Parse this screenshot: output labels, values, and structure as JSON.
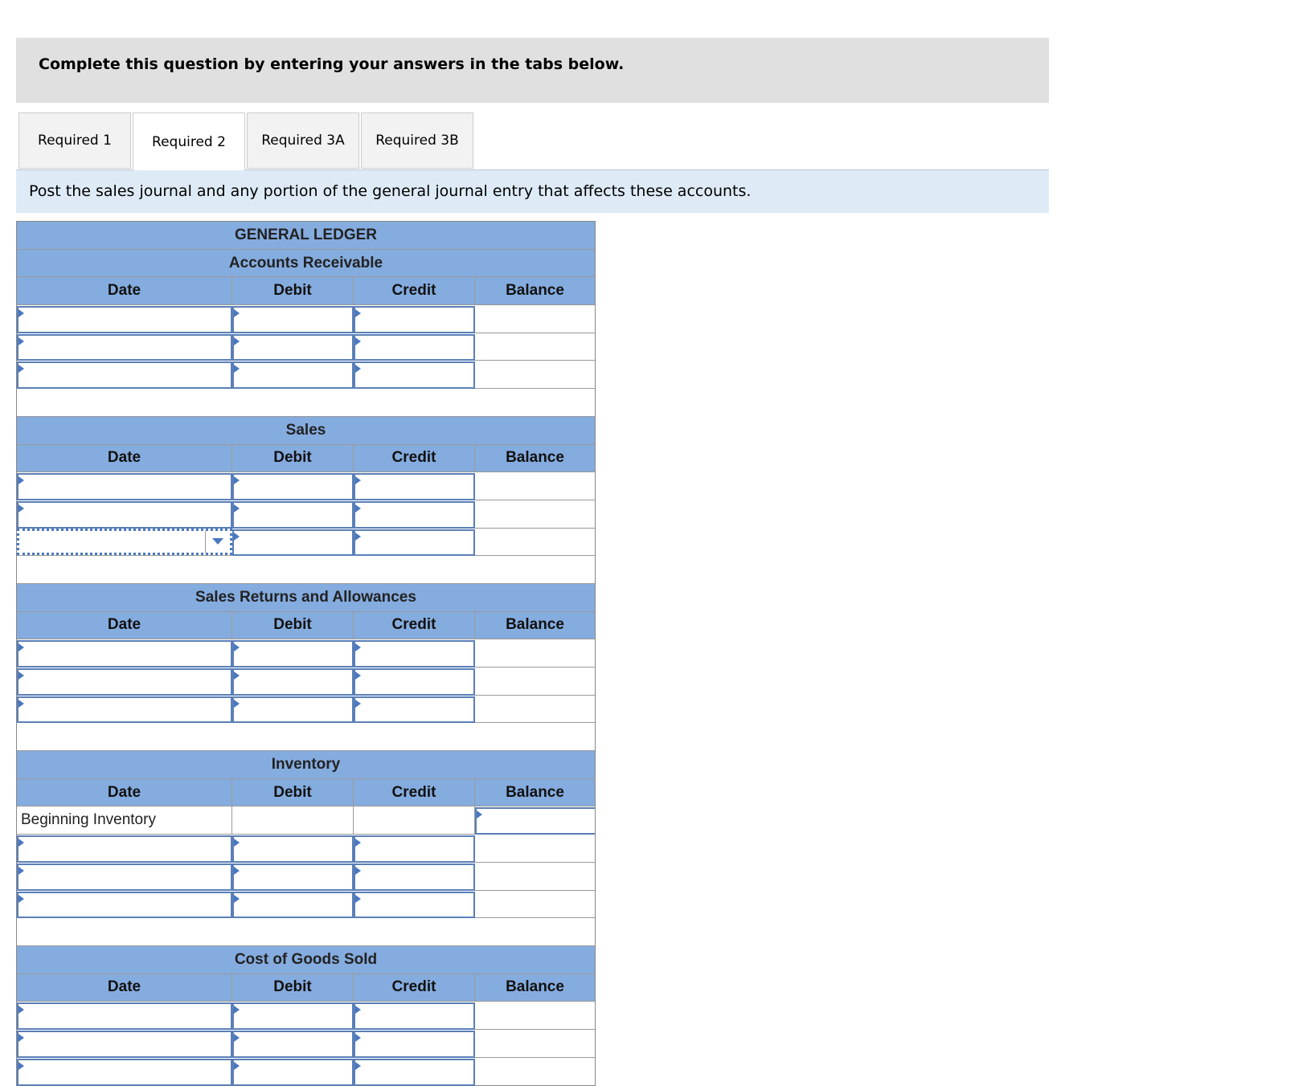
{
  "banner": "Complete this question by entering your answers in the tabs below.",
  "tabs": [
    {
      "label": "Required 1",
      "active": false
    },
    {
      "label": "Required 2",
      "active": true
    },
    {
      "label": "Required 3A",
      "active": false
    },
    {
      "label": "Required 3B",
      "active": false
    }
  ],
  "instruction": "Post the sales journal and any portion of the general journal entry that affects these accounts.",
  "ledger": {
    "title": "GENERAL LEDGER",
    "columns": [
      "Date",
      "Debit",
      "Credit",
      "Balance"
    ],
    "accounts": [
      {
        "name": "Accounts Receivable",
        "rows": 3
      },
      {
        "name": "Sales",
        "rows": 3,
        "focused_row": 2
      },
      {
        "name": "Sales Returns and Allowances",
        "rows": 3
      },
      {
        "name": "Inventory",
        "beginning_label": "Beginning Inventory",
        "rows": 3
      },
      {
        "name": "Cost of Goods Sold",
        "rows": 3
      }
    ]
  },
  "icons": {
    "input-marker": "triangle-right-icon",
    "dropdown": "chevron-down-icon"
  },
  "colors": {
    "header_blue": "#85acdf",
    "input_border": "#5a7fb8",
    "instruction_bg": "#deebf7",
    "banner_bg": "#e0e0e0"
  }
}
